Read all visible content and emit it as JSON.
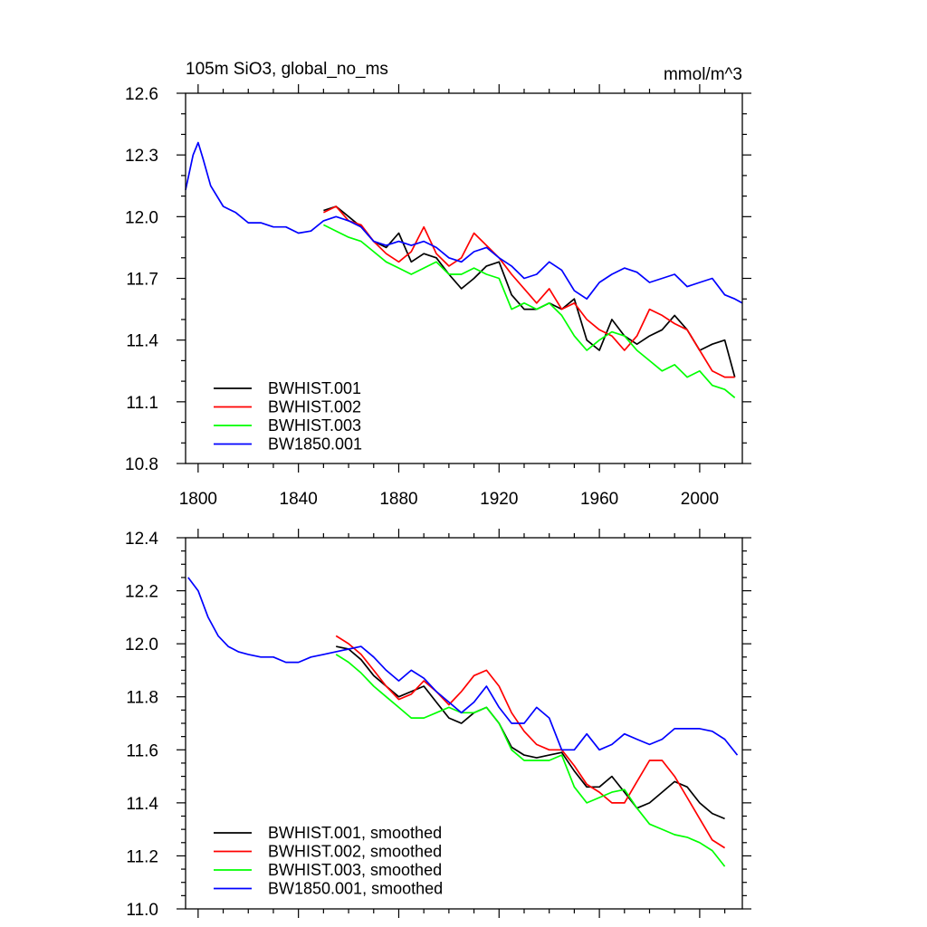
{
  "chart_data": [
    {
      "type": "line",
      "title": "105m SiO3, global_no_ms",
      "units": "mmol/m^3",
      "xlim": [
        1795,
        2017
      ],
      "ylim": [
        10.8,
        12.6
      ],
      "x_ticks": [
        1800,
        1840,
        1880,
        1920,
        1960,
        2000
      ],
      "y_ticks": [
        10.8,
        11.1,
        11.4,
        11.7,
        12.0,
        12.3,
        12.6
      ],
      "y_tick_labels": [
        "10.8",
        "11.1",
        "11.4",
        "11.7",
        "12.0",
        "12.3",
        "12.6"
      ],
      "x_minor_step": 10,
      "y_minor_step": 0.1,
      "legend_position": "bottom-left",
      "series": [
        {
          "name": "BWHIST.001",
          "color": "#000000",
          "x": [
            1850,
            1855,
            1860,
            1865,
            1870,
            1875,
            1880,
            1885,
            1890,
            1895,
            1900,
            1905,
            1910,
            1915,
            1920,
            1925,
            1930,
            1935,
            1940,
            1945,
            1950,
            1955,
            1960,
            1965,
            1970,
            1975,
            1980,
            1985,
            1990,
            1995,
            2000,
            2005,
            2010,
            2014
          ],
          "y": [
            12.03,
            12.05,
            12.0,
            11.95,
            11.88,
            11.85,
            11.92,
            11.78,
            11.82,
            11.8,
            11.72,
            11.65,
            11.7,
            11.76,
            11.78,
            11.62,
            11.55,
            11.55,
            11.58,
            11.55,
            11.6,
            11.4,
            11.35,
            11.5,
            11.42,
            11.38,
            11.42,
            11.45,
            11.52,
            11.45,
            11.35,
            11.38,
            11.4,
            11.22
          ]
        },
        {
          "name": "BWHIST.002",
          "color": "#ff0000",
          "x": [
            1850,
            1855,
            1860,
            1865,
            1870,
            1875,
            1880,
            1885,
            1890,
            1895,
            1900,
            1905,
            1910,
            1915,
            1920,
            1925,
            1930,
            1935,
            1940,
            1945,
            1950,
            1955,
            1960,
            1965,
            1970,
            1975,
            1980,
            1985,
            1990,
            1995,
            2000,
            2005,
            2010,
            2014
          ],
          "y": [
            12.02,
            12.05,
            11.98,
            11.96,
            11.88,
            11.82,
            11.78,
            11.83,
            11.95,
            11.82,
            11.76,
            11.8,
            11.92,
            11.86,
            11.8,
            11.72,
            11.65,
            11.58,
            11.65,
            11.55,
            11.58,
            11.5,
            11.45,
            11.42,
            11.35,
            11.42,
            11.55,
            11.52,
            11.48,
            11.45,
            11.35,
            11.25,
            11.22,
            11.22
          ]
        },
        {
          "name": "BWHIST.003",
          "color": "#00ff00",
          "x": [
            1850,
            1855,
            1860,
            1865,
            1870,
            1875,
            1880,
            1885,
            1890,
            1895,
            1900,
            1905,
            1910,
            1915,
            1920,
            1925,
            1930,
            1935,
            1940,
            1945,
            1950,
            1955,
            1960,
            1965,
            1970,
            1975,
            1980,
            1985,
            1990,
            1995,
            2000,
            2005,
            2010,
            2014
          ],
          "y": [
            11.96,
            11.93,
            11.9,
            11.88,
            11.83,
            11.78,
            11.75,
            11.72,
            11.75,
            11.78,
            11.72,
            11.72,
            11.75,
            11.72,
            11.7,
            11.55,
            11.58,
            11.55,
            11.58,
            11.52,
            11.42,
            11.35,
            11.4,
            11.44,
            11.42,
            11.35,
            11.3,
            11.25,
            11.28,
            11.22,
            11.25,
            11.18,
            11.16,
            11.12
          ]
        },
        {
          "name": "BW1850.001",
          "color": "#0000ff",
          "x": [
            1795,
            1798,
            1800,
            1802,
            1805,
            1810,
            1815,
            1820,
            1825,
            1830,
            1835,
            1840,
            1845,
            1850,
            1855,
            1860,
            1865,
            1870,
            1875,
            1880,
            1885,
            1890,
            1895,
            1900,
            1905,
            1910,
            1915,
            1920,
            1925,
            1930,
            1935,
            1940,
            1945,
            1950,
            1955,
            1960,
            1965,
            1970,
            1975,
            1980,
            1985,
            1990,
            1995,
            2000,
            2005,
            2010,
            2014,
            2017
          ],
          "y": [
            12.13,
            12.3,
            12.36,
            12.28,
            12.15,
            12.05,
            12.02,
            11.97,
            11.97,
            11.95,
            11.95,
            11.92,
            11.93,
            11.98,
            12.0,
            11.98,
            11.95,
            11.88,
            11.86,
            11.88,
            11.86,
            11.88,
            11.85,
            11.8,
            11.78,
            11.83,
            11.85,
            11.8,
            11.76,
            11.7,
            11.72,
            11.78,
            11.74,
            11.64,
            11.6,
            11.68,
            11.72,
            11.75,
            11.73,
            11.68,
            11.7,
            11.72,
            11.66,
            11.68,
            11.7,
            11.62,
            11.6,
            11.58
          ]
        }
      ]
    },
    {
      "type": "line",
      "xlim": [
        1795,
        2017
      ],
      "ylim": [
        11.0,
        12.4
      ],
      "x_ticks": [
        1800,
        1840,
        1880,
        1920,
        1960,
        2000
      ],
      "y_ticks": [
        11.0,
        11.2,
        11.4,
        11.6,
        11.8,
        12.0,
        12.2,
        12.4
      ],
      "y_tick_labels": [
        "11.0",
        "11.2",
        "11.4",
        "11.6",
        "11.8",
        "12.0",
        "12.2",
        "12.4"
      ],
      "x_minor_step": 10,
      "y_minor_step": 0.05,
      "legend_position": "bottom-left",
      "series": [
        {
          "name": "BWHIST.001, smoothed",
          "color": "#000000",
          "x": [
            1855,
            1860,
            1865,
            1870,
            1875,
            1880,
            1885,
            1890,
            1895,
            1900,
            1905,
            1910,
            1915,
            1920,
            1925,
            1930,
            1935,
            1940,
            1945,
            1950,
            1955,
            1960,
            1965,
            1970,
            1975,
            1980,
            1985,
            1990,
            1995,
            2000,
            2005,
            2010
          ],
          "y": [
            11.99,
            11.98,
            11.94,
            11.88,
            11.84,
            11.8,
            11.82,
            11.84,
            11.78,
            11.72,
            11.7,
            11.74,
            11.76,
            11.7,
            11.61,
            11.58,
            11.57,
            11.58,
            11.59,
            11.52,
            11.46,
            11.46,
            11.5,
            11.44,
            11.38,
            11.4,
            11.44,
            11.48,
            11.46,
            11.4,
            11.36,
            11.34
          ]
        },
        {
          "name": "BWHIST.002, smoothed",
          "color": "#ff0000",
          "x": [
            1855,
            1860,
            1865,
            1870,
            1875,
            1880,
            1885,
            1890,
            1895,
            1900,
            1905,
            1910,
            1915,
            1920,
            1925,
            1930,
            1935,
            1940,
            1945,
            1950,
            1955,
            1960,
            1965,
            1970,
            1975,
            1980,
            1985,
            1990,
            1995,
            2000,
            2005,
            2010
          ],
          "y": [
            12.03,
            12.0,
            11.96,
            11.9,
            11.84,
            11.79,
            11.81,
            11.86,
            11.82,
            11.77,
            11.82,
            11.88,
            11.9,
            11.84,
            11.74,
            11.67,
            11.62,
            11.6,
            11.6,
            11.54,
            11.47,
            11.44,
            11.4,
            11.4,
            11.48,
            11.56,
            11.56,
            11.5,
            11.42,
            11.34,
            11.26,
            11.23
          ]
        },
        {
          "name": "BWHIST.003, smoothed",
          "color": "#00ff00",
          "x": [
            1855,
            1860,
            1865,
            1870,
            1875,
            1880,
            1885,
            1890,
            1895,
            1900,
            1905,
            1910,
            1915,
            1920,
            1925,
            1930,
            1935,
            1940,
            1945,
            1950,
            1955,
            1960,
            1965,
            1970,
            1975,
            1980,
            1985,
            1990,
            1995,
            2000,
            2005,
            2010
          ],
          "y": [
            11.96,
            11.93,
            11.89,
            11.84,
            11.8,
            11.76,
            11.72,
            11.72,
            11.74,
            11.76,
            11.74,
            11.74,
            11.76,
            11.7,
            11.6,
            11.56,
            11.56,
            11.56,
            11.58,
            11.46,
            11.4,
            11.42,
            11.44,
            11.45,
            11.38,
            11.32,
            11.3,
            11.28,
            11.27,
            11.25,
            11.22,
            11.16
          ]
        },
        {
          "name": "BW1850.001, smoothed",
          "color": "#0000ff",
          "x": [
            1796,
            1800,
            1804,
            1808,
            1812,
            1816,
            1820,
            1825,
            1830,
            1835,
            1840,
            1845,
            1850,
            1855,
            1860,
            1865,
            1870,
            1875,
            1880,
            1885,
            1890,
            1895,
            1900,
            1905,
            1910,
            1915,
            1920,
            1925,
            1930,
            1935,
            1940,
            1945,
            1950,
            1955,
            1960,
            1965,
            1970,
            1975,
            1980,
            1985,
            1990,
            1995,
            2000,
            2005,
            2010,
            2015
          ],
          "y": [
            12.25,
            12.2,
            12.1,
            12.03,
            11.99,
            11.97,
            11.96,
            11.95,
            11.95,
            11.93,
            11.93,
            11.95,
            11.96,
            11.97,
            11.98,
            11.99,
            11.95,
            11.9,
            11.86,
            11.9,
            11.87,
            11.82,
            11.78,
            11.74,
            11.78,
            11.84,
            11.76,
            11.7,
            11.7,
            11.76,
            11.72,
            11.6,
            11.6,
            11.66,
            11.6,
            11.62,
            11.66,
            11.64,
            11.62,
            11.64,
            11.68,
            11.68,
            11.68,
            11.67,
            11.64,
            11.58
          ]
        }
      ]
    }
  ]
}
